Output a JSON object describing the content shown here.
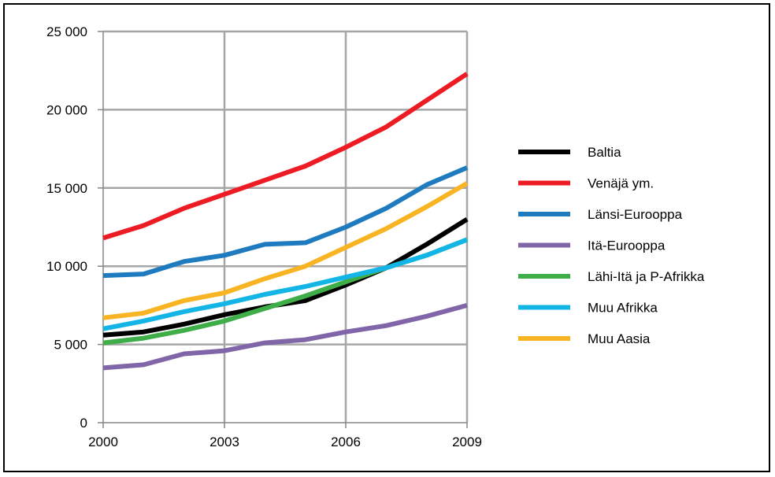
{
  "chart_data": {
    "type": "line",
    "title": "",
    "xlabel": "",
    "ylabel": "",
    "x": [
      2000,
      2001,
      2002,
      2003,
      2004,
      2005,
      2006,
      2007,
      2008,
      2009
    ],
    "x_tick_labels": [
      "2000",
      "2003",
      "2006",
      "2009"
    ],
    "x_tick_values": [
      2000,
      2003,
      2006,
      2009
    ],
    "y_tick_labels": [
      "0",
      "5 000",
      "10 000",
      "15 000",
      "20 000",
      "25 000"
    ],
    "y_tick_values": [
      0,
      5000,
      10000,
      15000,
      20000,
      25000
    ],
    "ylim": [
      0,
      25000
    ],
    "xlim": [
      2000,
      2009
    ],
    "grid": true,
    "legend_position": "right",
    "series": [
      {
        "name": "Baltia",
        "color": "#000000",
        "values": [
          5600,
          5800,
          6300,
          6900,
          7400,
          7800,
          8800,
          9900,
          11400,
          13000
        ]
      },
      {
        "name": "Venäjä ym.",
        "color": "#ed1c24",
        "values": [
          11800,
          12600,
          13700,
          14600,
          15500,
          16400,
          17600,
          18900,
          20600,
          22300
        ]
      },
      {
        "name": "Länsi-Eurooppa",
        "color": "#1f7bbf",
        "values": [
          9400,
          9500,
          10300,
          10700,
          11400,
          11500,
          12500,
          13700,
          15200,
          16300
        ]
      },
      {
        "name": "Itä-Eurooppa",
        "color": "#8066a8",
        "values": [
          3500,
          3700,
          4400,
          4600,
          5100,
          5300,
          5800,
          6200,
          6800,
          7500
        ]
      },
      {
        "name": "Lähi-Itä ja P-Afrikka",
        "color": "#3fae49",
        "values": [
          5100,
          5400,
          5900,
          6500,
          7300,
          8100,
          9000,
          9900,
          10700,
          11700
        ]
      },
      {
        "name": "Muu Afrikka",
        "color": "#12b5e5",
        "values": [
          6000,
          6500,
          7100,
          7600,
          8200,
          8700,
          9300,
          9900,
          10700,
          11700
        ]
      },
      {
        "name": "Muu Aasia",
        "color": "#f9b423",
        "values": [
          6700,
          7000,
          7800,
          8300,
          9200,
          10000,
          11200,
          12400,
          13800,
          15300
        ]
      }
    ]
  }
}
